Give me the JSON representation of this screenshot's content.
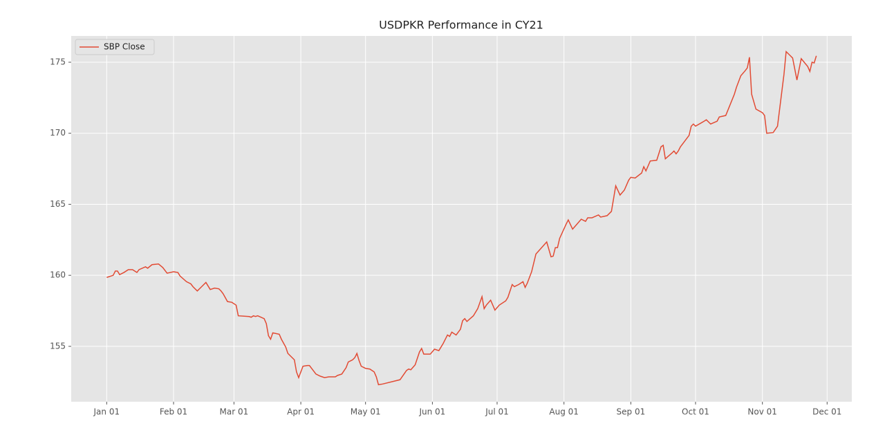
{
  "chart_data": {
    "type": "line",
    "title": "USDPKR Performance in CY21",
    "x": [
      "01-01",
      "01-04",
      "01-05",
      "01-06",
      "01-07",
      "01-09",
      "01-11",
      "01-13",
      "01-15",
      "01-16",
      "01-19",
      "01-20",
      "01-22",
      "01-25",
      "01-27",
      "01-29",
      "02-01",
      "02-03",
      "02-04",
      "02-07",
      "02-09",
      "02-10",
      "02-12",
      "02-14",
      "02-16",
      "02-18",
      "02-20",
      "02-22",
      "02-23",
      "02-24",
      "02-26",
      "02-28",
      "03-02",
      "03-03",
      "03-08",
      "03-09",
      "03-10",
      "03-11",
      "03-12",
      "03-15",
      "03-16",
      "03-17",
      "03-18",
      "03-19",
      "03-22",
      "03-23",
      "03-25",
      "03-26",
      "03-29",
      "03-30",
      "03-31",
      "04-02",
      "04-04",
      "04-05",
      "04-07",
      "04-08",
      "04-10",
      "04-12",
      "04-14",
      "04-17",
      "04-18",
      "04-20",
      "04-22",
      "04-23",
      "04-25",
      "04-26",
      "04-27",
      "04-28",
      "04-29",
      "05-01",
      "05-03",
      "05-05",
      "05-06",
      "05-07",
      "05-09",
      "05-17",
      "05-20",
      "05-21",
      "05-22",
      "05-24",
      "05-26",
      "05-27",
      "05-28",
      "05-31",
      "06-02",
      "06-04",
      "06-06",
      "06-08",
      "06-09",
      "06-10",
      "06-12",
      "06-14",
      "06-15",
      "06-16",
      "06-17",
      "06-20",
      "06-22",
      "06-24",
      "06-25",
      "06-26",
      "06-28",
      "06-30",
      "07-02",
      "07-05",
      "07-06",
      "07-08",
      "07-09",
      "07-11",
      "07-13",
      "07-14",
      "07-15",
      "07-17",
      "07-19",
      "07-24",
      "07-26",
      "07-27",
      "07-28",
      "07-29",
      "07-30",
      "08-02",
      "08-03",
      "08-05",
      "08-07",
      "08-09",
      "08-11",
      "08-12",
      "08-14",
      "08-17",
      "08-18",
      "08-21",
      "08-23",
      "08-25",
      "08-27",
      "08-29",
      "08-31",
      "09-01",
      "09-03",
      "09-06",
      "09-07",
      "09-08",
      "09-10",
      "09-13",
      "09-15",
      "09-16",
      "09-17",
      "09-20",
      "09-21",
      "09-22",
      "09-23",
      "09-24",
      "09-26",
      "09-28",
      "09-29",
      "09-30",
      "10-01",
      "10-05",
      "10-06",
      "10-08",
      "10-11",
      "10-12",
      "10-15",
      "10-19",
      "10-20",
      "10-22",
      "10-24",
      "10-25",
      "10-26",
      "10-27",
      "10-29",
      "11-01",
      "11-02",
      "11-03",
      "11-06",
      "11-08",
      "11-11",
      "11-12",
      "11-15",
      "11-17",
      "11-19",
      "11-22",
      "11-23",
      "11-24",
      "11-25",
      "11-26"
    ],
    "series": [
      {
        "name": "SBP Close",
        "color": "#e24a33",
        "values": [
          159.85,
          160.0,
          160.3,
          160.3,
          160.05,
          160.2,
          160.4,
          160.4,
          160.2,
          160.4,
          160.6,
          160.5,
          160.75,
          160.8,
          160.55,
          160.15,
          160.25,
          160.2,
          159.95,
          159.55,
          159.4,
          159.2,
          158.9,
          159.2,
          159.5,
          159.0,
          159.1,
          159.05,
          158.9,
          158.7,
          158.15,
          158.1,
          157.9,
          157.15,
          157.1,
          157.05,
          157.15,
          157.1,
          157.15,
          156.95,
          156.6,
          155.75,
          155.5,
          155.95,
          155.85,
          155.5,
          154.95,
          154.5,
          154.05,
          153.2,
          152.8,
          153.6,
          153.65,
          153.65,
          153.25,
          153.05,
          152.9,
          152.8,
          152.85,
          152.85,
          152.95,
          153.05,
          153.5,
          153.9,
          154.05,
          154.2,
          154.5,
          154.0,
          153.6,
          153.45,
          153.4,
          153.2,
          152.85,
          152.3,
          152.35,
          152.65,
          153.3,
          153.4,
          153.35,
          153.7,
          154.6,
          154.85,
          154.45,
          154.45,
          154.8,
          154.7,
          155.2,
          155.8,
          155.7,
          156.0,
          155.8,
          156.2,
          156.8,
          156.95,
          156.75,
          157.15,
          157.65,
          158.5,
          157.65,
          157.9,
          158.25,
          157.55,
          157.9,
          158.2,
          158.45,
          159.35,
          159.2,
          159.35,
          159.55,
          159.15,
          159.45,
          160.25,
          161.5,
          162.35,
          161.3,
          161.35,
          161.95,
          161.95,
          162.6,
          163.6,
          163.9,
          163.25,
          163.6,
          163.95,
          163.8,
          164.05,
          164.05,
          164.25,
          164.1,
          164.2,
          164.5,
          166.3,
          165.65,
          166.0,
          166.7,
          166.9,
          166.85,
          167.2,
          167.65,
          167.35,
          168.05,
          168.1,
          169.05,
          169.15,
          168.2,
          168.6,
          168.75,
          168.55,
          168.75,
          169.05,
          169.45,
          169.85,
          170.5,
          170.65,
          170.5,
          170.85,
          170.95,
          170.65,
          170.85,
          171.15,
          171.25,
          172.75,
          173.25,
          174.05,
          174.4,
          174.6,
          175.35,
          172.75,
          171.7,
          171.45,
          171.25,
          170.0,
          170.05,
          170.5,
          174.15,
          175.75,
          175.3,
          173.75,
          175.25,
          174.7,
          174.35,
          175.0,
          174.95,
          175.45
        ]
      }
    ],
    "ylim": [
      151.1,
      176.85
    ],
    "yticks": [
      155,
      160,
      165,
      170,
      175
    ],
    "xticks": [
      {
        "value": "01-01",
        "label": "Jan 01"
      },
      {
        "value": "02-01",
        "label": "Feb 01"
      },
      {
        "value": "03-01",
        "label": "Mar 01"
      },
      {
        "value": "04-01",
        "label": "Apr 01"
      },
      {
        "value": "05-01",
        "label": "May 01"
      },
      {
        "value": "06-01",
        "label": "Jun 01"
      },
      {
        "value": "07-01",
        "label": "Jul 01"
      },
      {
        "value": "08-01",
        "label": "Aug 01"
      },
      {
        "value": "09-01",
        "label": "Sep 01"
      },
      {
        "value": "10-01",
        "label": "Oct 01"
      },
      {
        "value": "11-01",
        "label": "Nov 01"
      },
      {
        "value": "12-01",
        "label": "Dec 01"
      }
    ],
    "grid": true,
    "legend": "upper left"
  }
}
